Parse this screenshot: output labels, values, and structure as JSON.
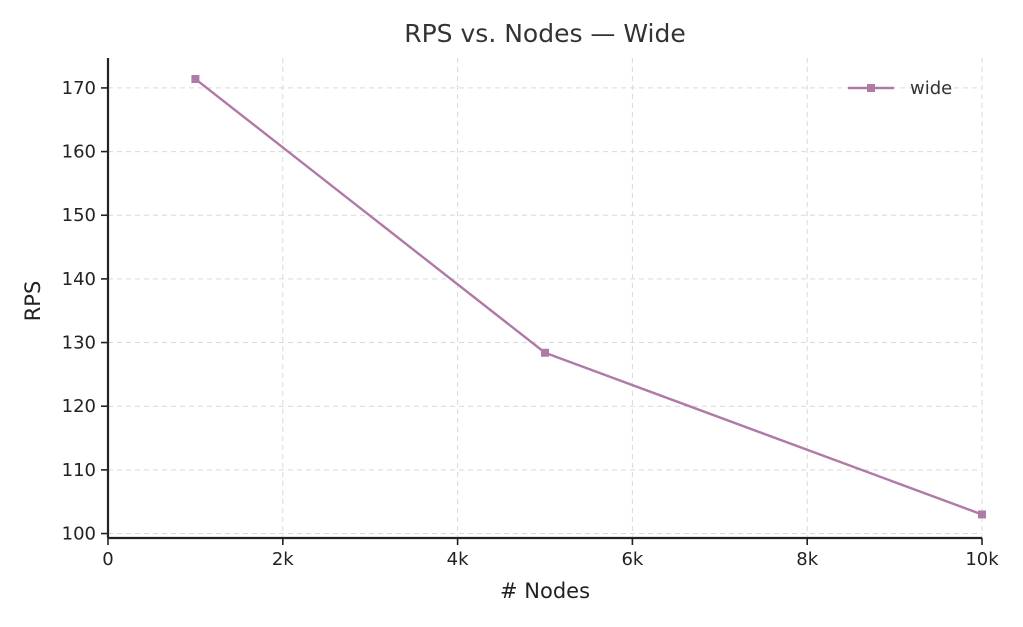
{
  "chart_data": {
    "type": "line",
    "title": "RPS vs. Nodes — Wide",
    "xlabel": "# Nodes",
    "ylabel": "RPS",
    "xlim": [
      0,
      10000
    ],
    "ylim": [
      99.3,
      174.7
    ],
    "x_ticks": [
      0,
      2000,
      4000,
      6000,
      8000,
      10000
    ],
    "x_tick_labels": [
      "0",
      "2k",
      "4k",
      "6k",
      "8k",
      "10k"
    ],
    "y_ticks": [
      100,
      110,
      120,
      130,
      140,
      150,
      160,
      170
    ],
    "y_tick_labels": [
      "100",
      "110",
      "120",
      "130",
      "140",
      "150",
      "160",
      "170"
    ],
    "grid": true,
    "legend_position": "top-right",
    "series": [
      {
        "name": "wide",
        "color": "#b07aa6",
        "marker": "square",
        "x": [
          1000,
          5000,
          10000
        ],
        "y": [
          171.4,
          128.4,
          103.0
        ]
      }
    ]
  }
}
